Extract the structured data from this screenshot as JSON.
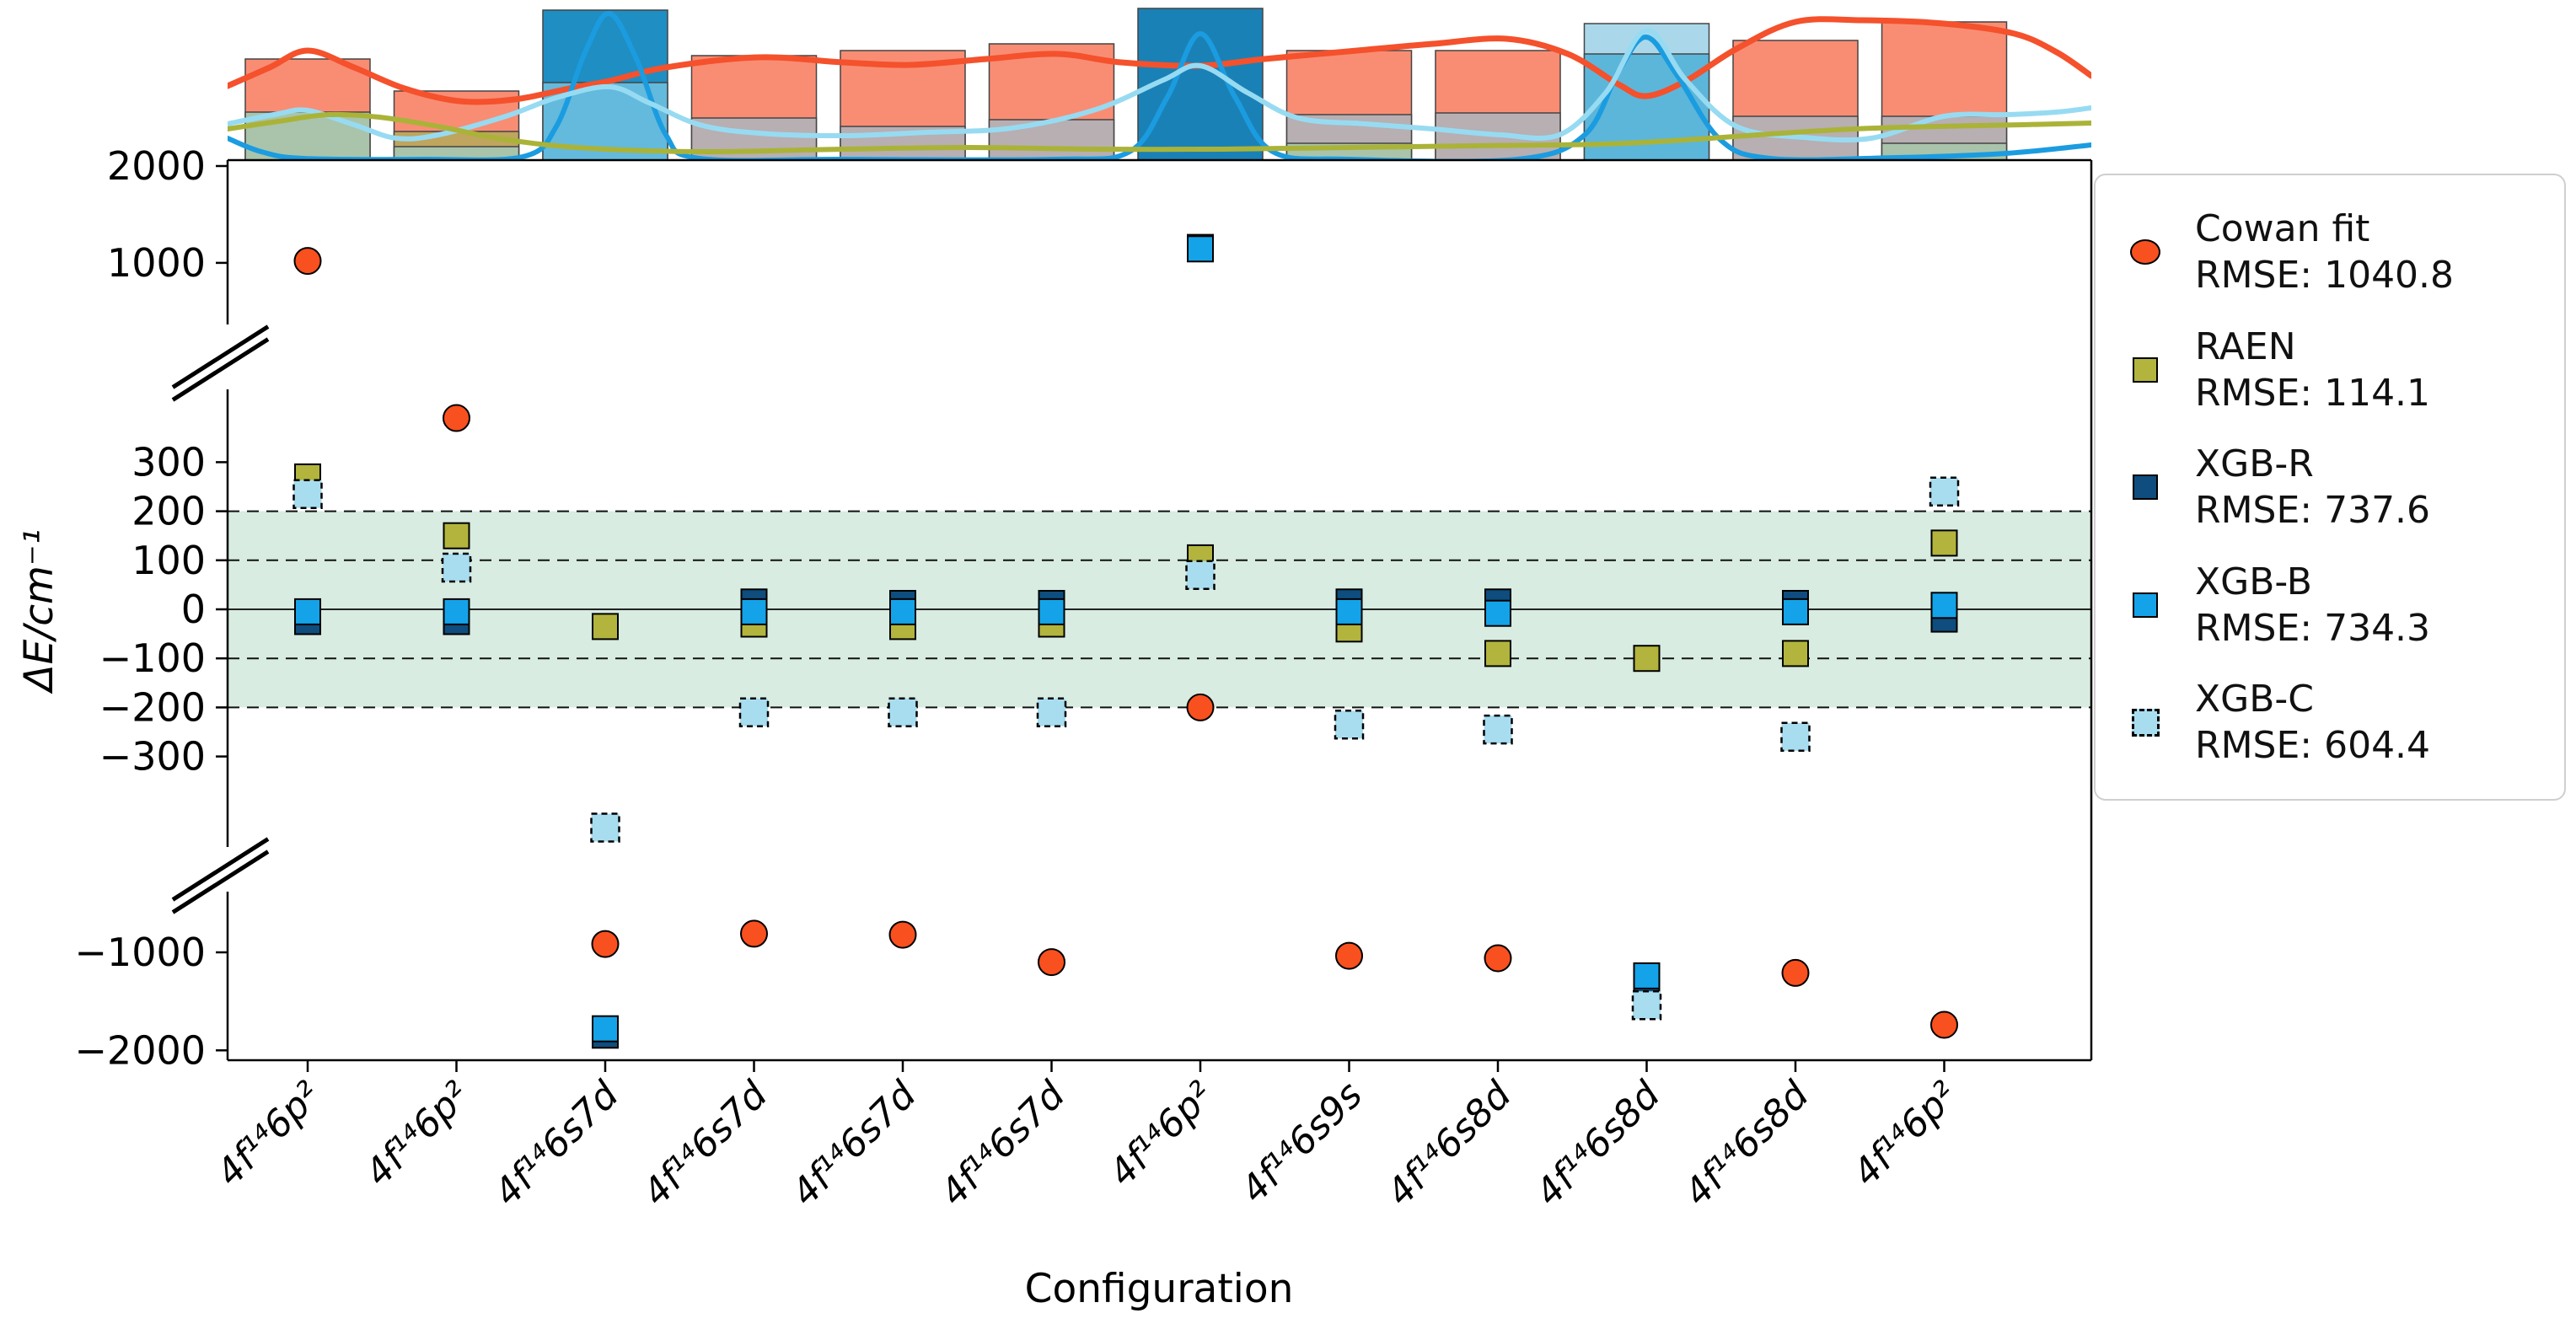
{
  "figure": {
    "background": "#ffffff"
  },
  "chart_data": {
    "type": "scatter",
    "title": "",
    "xlabel": "Configuration",
    "ylabel": "ΔE/cm⁻¹",
    "legend_position": "right",
    "categories": [
      "4f¹⁴6p²",
      "4f¹⁴6p²",
      "4f¹⁴6s7d",
      "4f¹⁴6s7d",
      "4f¹⁴6s7d",
      "4f¹⁴6s7d",
      "4f¹⁴6p²",
      "4f¹⁴6s9s",
      "4f¹⁴6s8d",
      "4f¹⁴6s8d",
      "4f¹⁴6s8d",
      "4f¹⁴6p²"
    ],
    "broken_y_axis": {
      "unit": "cm⁻¹",
      "sections": [
        {
          "name": "top",
          "ticks": [
            2000,
            1000
          ]
        },
        {
          "name": "middle",
          "ticks": [
            300,
            200,
            100,
            0,
            -100,
            -200,
            -300
          ]
        },
        {
          "name": "bottom",
          "ticks": [
            -1000,
            -2000
          ]
        }
      ]
    },
    "shaded_band": {
      "from": 200,
      "to": -200,
      "color": "#d8ece1",
      "dashed_lines": [
        200,
        100,
        -100,
        -200
      ],
      "zero_line": 0
    },
    "series": [
      {
        "name": "Cowan fit",
        "rmse": 1040.8,
        "rmse_text": "RMSE: 1040.8",
        "marker": "circle",
        "color": "#f8501e",
        "values": [
          1020,
          390,
          -915,
          -810,
          -820,
          -1100,
          -200,
          -1035,
          -1060,
          null,
          -1210,
          -1740
        ]
      },
      {
        "name": "RAEN",
        "rmse": 114.1,
        "rmse_text": "RMSE: 114.1",
        "marker": "square",
        "color": "#b2b43d",
        "values": [
          270,
          150,
          -35,
          -30,
          -35,
          -30,
          105,
          -40,
          -90,
          -100,
          -90,
          135
        ]
      },
      {
        "name": "XGB-R",
        "rmse": 737.6,
        "rmse_text": "RMSE: 737.6",
        "marker": "square",
        "color": "#0e4d7d",
        "values": [
          -25,
          -25,
          -1845,
          15,
          12,
          12,
          1160,
          15,
          15,
          -1285,
          12,
          -20
        ]
      },
      {
        "name": "XGB-B",
        "rmse": 734.3,
        "rmse_text": "RMSE: 734.3",
        "marker": "square",
        "color": "#14a3e8",
        "values": [
          -5,
          -5,
          -1780,
          -5,
          -5,
          -5,
          1145,
          -5,
          -8,
          -1240,
          -5,
          8
        ]
      },
      {
        "name": "XGB-C",
        "rmse": 604.4,
        "rmse_text": "RMSE: 604.4",
        "marker": "square-dashed",
        "color": "#a8ddf0",
        "values": [
          235,
          85,
          -445,
          -210,
          -210,
          -210,
          70,
          -235,
          -245,
          -1540,
          -260,
          240
        ]
      }
    ],
    "draw_order": [
      1,
      2,
      3,
      4,
      0
    ]
  },
  "marginal_panel": {
    "description": "histogram with kde curves per series",
    "bar_edge_color": "#444444",
    "bars": [
      {
        "segments": [
          [
            70,
            "#f98d74"
          ],
          [
            133,
            "#a9c4ab"
          ]
        ]
      },
      {
        "segments": [
          [
            108,
            "#f98d74"
          ],
          [
            156,
            "#bfa55e"
          ],
          [
            174,
            "#a9c4ab"
          ]
        ]
      },
      {
        "segments": [
          [
            12,
            "#1f8ec3"
          ],
          [
            98,
            "#63badd"
          ]
        ]
      },
      {
        "segments": [
          [
            66,
            "#f98d74"
          ],
          [
            140,
            "#b7afb2"
          ]
        ]
      },
      {
        "segments": [
          [
            60,
            "#f98d74"
          ],
          [
            150,
            "#b7afb2"
          ]
        ]
      },
      {
        "segments": [
          [
            52,
            "#f98d74"
          ],
          [
            142,
            "#b7afb2"
          ]
        ]
      },
      {
        "segments": [
          [
            10,
            "#1a81b6"
          ]
        ]
      },
      {
        "segments": [
          [
            60,
            "#f98d74"
          ],
          [
            136,
            "#b7afb2"
          ],
          [
            170,
            "#a9c4ab"
          ]
        ]
      },
      {
        "segments": [
          [
            60,
            "#f98d74"
          ],
          [
            134,
            "#b7afb2"
          ]
        ]
      },
      {
        "segments": [
          [
            28,
            "#aad8ea"
          ],
          [
            64,
            "#5cb6da"
          ]
        ]
      },
      {
        "segments": [
          [
            48,
            "#f98d74"
          ],
          [
            138,
            "#b7afb2"
          ]
        ]
      },
      {
        "segments": [
          [
            26,
            "#f98d74"
          ],
          [
            138,
            "#b7afb2"
          ],
          [
            170,
            "#a9c4ab"
          ]
        ]
      }
    ],
    "curves": [
      {
        "name": "cowan-kde",
        "color": "#f4512c",
        "stroke_width": 7,
        "points": [
          [
            270,
            102
          ],
          [
            320,
            80
          ],
          [
            365,
            60
          ],
          [
            420,
            80
          ],
          [
            480,
            105
          ],
          [
            545,
            120
          ],
          [
            610,
            118
          ],
          [
            680,
            104
          ],
          [
            723,
            96
          ],
          [
            790,
            80
          ],
          [
            900,
            68
          ],
          [
            1000,
            74
          ],
          [
            1080,
            77
          ],
          [
            1170,
            70
          ],
          [
            1255,
            64
          ],
          [
            1330,
            74
          ],
          [
            1424,
            78
          ],
          [
            1500,
            70
          ],
          [
            1610,
            60
          ],
          [
            1700,
            52
          ],
          [
            1787,
            46
          ],
          [
            1860,
            64
          ],
          [
            1920,
            100
          ],
          [
            1953,
            114
          ],
          [
            2000,
            96
          ],
          [
            2060,
            58
          ],
          [
            2130,
            26
          ],
          [
            2210,
            24
          ],
          [
            2306,
            28
          ],
          [
            2390,
            40
          ],
          [
            2440,
            62
          ],
          [
            2481,
            90
          ]
        ]
      },
      {
        "name": "xgb-b-kde",
        "color": "#1b9ce0",
        "stroke_width": 6,
        "points": [
          [
            270,
            164
          ],
          [
            310,
            180
          ],
          [
            360,
            188
          ],
          [
            500,
            189
          ],
          [
            620,
            186
          ],
          [
            660,
            150
          ],
          [
            695,
            60
          ],
          [
            723,
            16
          ],
          [
            755,
            70
          ],
          [
            790,
            160
          ],
          [
            830,
            188
          ],
          [
            1000,
            189
          ],
          [
            1250,
            189
          ],
          [
            1340,
            180
          ],
          [
            1385,
            115
          ],
          [
            1424,
            40
          ],
          [
            1465,
            115
          ],
          [
            1510,
            180
          ],
          [
            1600,
            189
          ],
          [
            1800,
            189
          ],
          [
            1880,
            160
          ],
          [
            1920,
            85
          ],
          [
            1953,
            44
          ],
          [
            1990,
            90
          ],
          [
            2040,
            165
          ],
          [
            2100,
            188
          ],
          [
            2250,
            187
          ],
          [
            2380,
            182
          ],
          [
            2481,
            172
          ]
        ]
      },
      {
        "name": "xgb-c-kde",
        "color": "#97dbf2",
        "stroke_width": 6,
        "points": [
          [
            270,
            147
          ],
          [
            330,
            135
          ],
          [
            365,
            131
          ],
          [
            420,
            148
          ],
          [
            470,
            164
          ],
          [
            520,
            160
          ],
          [
            600,
            138
          ],
          [
            660,
            116
          ],
          [
            723,
            103
          ],
          [
            770,
            122
          ],
          [
            830,
            148
          ],
          [
            900,
            158
          ],
          [
            1000,
            161
          ],
          [
            1100,
            157
          ],
          [
            1200,
            152
          ],
          [
            1300,
            130
          ],
          [
            1380,
            95
          ],
          [
            1424,
            78
          ],
          [
            1480,
            110
          ],
          [
            1540,
            140
          ],
          [
            1620,
            147
          ],
          [
            1700,
            153
          ],
          [
            1780,
            160
          ],
          [
            1850,
            160
          ],
          [
            1905,
            110
          ],
          [
            1953,
            36
          ],
          [
            2000,
            95
          ],
          [
            2060,
            150
          ],
          [
            2140,
            163
          ],
          [
            2220,
            164
          ],
          [
            2306,
            138
          ],
          [
            2380,
            136
          ],
          [
            2440,
            133
          ],
          [
            2481,
            128
          ]
        ]
      },
      {
        "name": "raen-kde",
        "color": "#aab338",
        "stroke_width": 6,
        "points": [
          [
            270,
            153
          ],
          [
            330,
            144
          ],
          [
            390,
            136
          ],
          [
            450,
            139
          ],
          [
            520,
            150
          ],
          [
            590,
            164
          ],
          [
            660,
            173
          ],
          [
            740,
            178
          ],
          [
            850,
            180
          ],
          [
            1000,
            177
          ],
          [
            1150,
            175
          ],
          [
            1300,
            177
          ],
          [
            1450,
            177
          ],
          [
            1600,
            175
          ],
          [
            1750,
            173
          ],
          [
            1900,
            171
          ],
          [
            2000,
            166
          ],
          [
            2100,
            159
          ],
          [
            2200,
            153
          ],
          [
            2300,
            150
          ],
          [
            2400,
            148
          ],
          [
            2481,
            146
          ]
        ]
      }
    ]
  }
}
